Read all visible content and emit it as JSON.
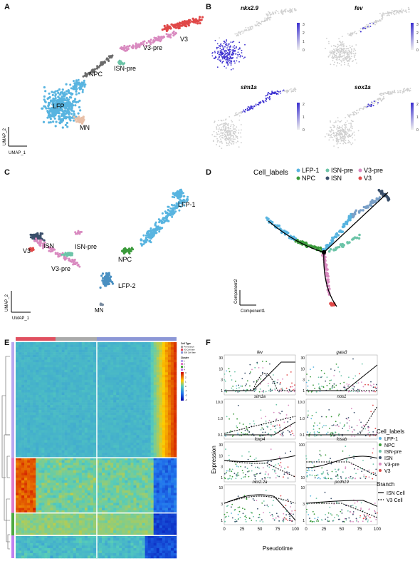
{
  "panels": {
    "a": {
      "letter": "A",
      "axis_x": "UMAP_1",
      "axis_y": "UMAP_2",
      "clusters": [
        "V3",
        "V3-pre",
        "NPC",
        "ISN-pre",
        "LFP",
        "MN"
      ]
    },
    "b": {
      "letter": "B",
      "genes": [
        "nkx2.9",
        "fev",
        "sim1a",
        "sox1a"
      ],
      "scales": {
        "nkx2.9": [
          "3",
          "2",
          "1",
          "0"
        ],
        "fev": [
          "3",
          "2",
          "1",
          "0"
        ],
        "sim1a": [
          "2",
          "1",
          "0"
        ],
        "sox1a": [
          "2",
          "1",
          "0"
        ]
      }
    },
    "c": {
      "letter": "C",
      "axis_x": "UMAP_1",
      "axis_y": "UMAP_2",
      "clusters": [
        "LFP-1",
        "NPC",
        "LFP-2",
        "MN",
        "V3",
        "ISN",
        "ISN-pre",
        "V3-pre"
      ]
    },
    "d": {
      "letter": "D",
      "legend_title": "Cell_labels",
      "legend": [
        "LFP-1",
        "ISN-pre",
        "V3-pre",
        "NPC",
        "ISN",
        "V3"
      ],
      "axis_x": "Component1",
      "axis_y": "Component2"
    },
    "e": {
      "letter": "E",
      "legend": {
        "cell_type_title": "Cell Type",
        "cell_types": [
          "Pre-branch",
          "V3 Cell fate",
          "ISN Cell fate"
        ],
        "cluster_title": "Cluster",
        "clusters": [
          "1",
          "2",
          "3",
          "4"
        ],
        "scale": [
          "3",
          "2",
          "1",
          "0",
          "-1",
          "-2",
          "-3"
        ]
      }
    },
    "f": {
      "letter": "F",
      "ylabel": "Expression",
      "xlabel": "Pseudotime",
      "genes": [
        "fev",
        "gata3",
        "sim1a",
        "nos1",
        "foxp4",
        "fosab",
        "nkx2.2a",
        "pcdh19"
      ],
      "xticks": [
        "0",
        "25",
        "50",
        "75",
        "100"
      ],
      "legend_title": "Cell_labels",
      "legend": [
        "LFP-1",
        "NPC",
        "ISN-pre",
        "ISN",
        "V3-pre",
        "V3"
      ],
      "branch_title": "Branch",
      "branches": [
        "ISN Cell",
        "V3 Cell"
      ]
    }
  },
  "colors": {
    "LFP": "#58b4e0",
    "LFP2": "#4a90c2",
    "NPC": "#6b6b6b",
    "NPC_D": "#3a9a3a",
    "ISNpre": "#6cc4a8",
    "ISN": "#3a4f6a",
    "V3pre": "#d98ac0",
    "V3": "#e04848",
    "MN": "#e8c0a8"
  },
  "chart_data": {
    "type": "line",
    "title": "",
    "xlabel": "Pseudotime",
    "ylabel": "Expression",
    "x": [
      0,
      25,
      50,
      75,
      100
    ],
    "series": []
  }
}
